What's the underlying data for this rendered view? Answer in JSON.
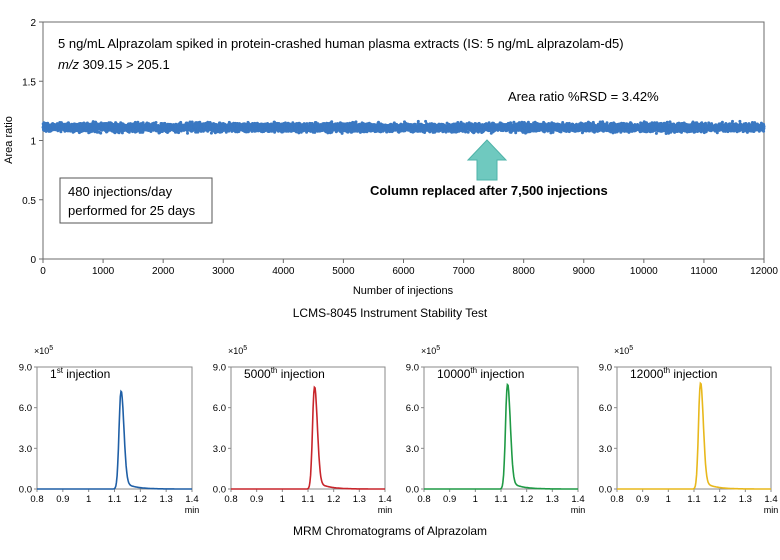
{
  "top_chart": {
    "caption": "LCMS-8045 Instrument Stability Test",
    "annotation_line1": "5 ng/mL Alprazolam spiked in protein-crashed human plasma extracts (IS: 5 ng/mL alprazolam-d5)",
    "annotation_line2_italic": "m/z",
    "annotation_line2_rest": " 309.15 > 205.1",
    "rsd_label": "Area ratio %RSD = 3.42%",
    "column_note": "Column replaced after 7,500 injections",
    "box_line1": "480 injections/day",
    "box_line2": "performed for 25 days",
    "arrow_color": "#6fc9bf",
    "point_color": "#3a78c2"
  },
  "bottom_caption": "MRM Chromatograms of Alprazolam",
  "chart_data": [
    {
      "type": "scatter",
      "title": "",
      "xlabel": "Number of injections",
      "ylabel": "Area ratio",
      "xlim": [
        0,
        12000
      ],
      "ylim": [
        0,
        2
      ],
      "x_ticks": [
        0,
        1000,
        2000,
        3000,
        4000,
        5000,
        6000,
        7000,
        8000,
        9000,
        10000,
        11000,
        12000
      ],
      "y_ticks": [
        "0",
        "0.5",
        "1",
        "1.5",
        "2"
      ],
      "y_tick_values": [
        0,
        0.5,
        1,
        1.5,
        2
      ],
      "series": [
        {
          "name": "Area ratio",
          "x_start": 0,
          "x_end": 12000,
          "count": 12000,
          "mean": 1.11,
          "spread": 0.038
        }
      ],
      "annotations": [
        "Column replaced after 7,500 injections",
        "Area ratio %RSD = 3.42%"
      ]
    },
    {
      "type": "line",
      "label_number": "1",
      "label_sup": "st",
      "label_rest": " injection",
      "color": "#1f5fa6",
      "x_unit": "min",
      "y_multiplier_base": "×10",
      "y_multiplier_exp": "5",
      "xlim": [
        0.8,
        1.4
      ],
      "ylim": [
        0,
        9.0
      ],
      "x_ticks": [
        "0.8",
        "0.9",
        "1",
        "1.1",
        "1.2",
        "1.3",
        "1.4"
      ],
      "x_tick_values": [
        0.8,
        0.9,
        1.0,
        1.1,
        1.2,
        1.3,
        1.4
      ],
      "y_ticks": [
        "0.0",
        "3.0",
        "6.0",
        "9.0"
      ],
      "y_tick_values": [
        0,
        3,
        6,
        9
      ],
      "peak_rt": 1.125,
      "peak_height": 7.2
    },
    {
      "type": "line",
      "label_number": "5000",
      "label_sup": "th",
      "label_rest": " injection",
      "color": "#c8252b",
      "x_unit": "min",
      "y_multiplier_base": "×10",
      "y_multiplier_exp": "5",
      "xlim": [
        0.8,
        1.4
      ],
      "ylim": [
        0,
        9.0
      ],
      "x_ticks": [
        "0.8",
        "0.9",
        "1",
        "1.1",
        "1.2",
        "1.3",
        "1.4"
      ],
      "x_tick_values": [
        0.8,
        0.9,
        1.0,
        1.1,
        1.2,
        1.3,
        1.4
      ],
      "y_ticks": [
        "0.0",
        "3.0",
        "6.0",
        "9.0"
      ],
      "y_tick_values": [
        0,
        3,
        6,
        9
      ],
      "peak_rt": 1.125,
      "peak_height": 7.5
    },
    {
      "type": "line",
      "label_number": "10000",
      "label_sup": "th",
      "label_rest": " injection",
      "color": "#1f9a45",
      "x_unit": "min",
      "y_multiplier_base": "×10",
      "y_multiplier_exp": "5",
      "xlim": [
        0.8,
        1.4
      ],
      "ylim": [
        0,
        9.0
      ],
      "x_ticks": [
        "0.8",
        "0.9",
        "1",
        "1.1",
        "1.2",
        "1.3",
        "1.4"
      ],
      "x_tick_values": [
        0.8,
        0.9,
        1.0,
        1.1,
        1.2,
        1.3,
        1.4
      ],
      "y_ticks": [
        "0.0",
        "3.0",
        "6.0",
        "9.0"
      ],
      "y_tick_values": [
        0,
        3,
        6,
        9
      ],
      "peak_rt": 1.125,
      "peak_height": 7.7
    },
    {
      "type": "line",
      "label_number": "12000",
      "label_sup": "th",
      "label_rest": " injection",
      "color": "#e8b81c",
      "x_unit": "min",
      "y_multiplier_base": "×10",
      "y_multiplier_exp": "5",
      "xlim": [
        0.8,
        1.4
      ],
      "ylim": [
        0,
        9.0
      ],
      "x_ticks": [
        "0.8",
        "0.9",
        "1",
        "1.1",
        "1.2",
        "1.3",
        "1.4"
      ],
      "x_tick_values": [
        0.8,
        0.9,
        1.0,
        1.1,
        1.2,
        1.3,
        1.4
      ],
      "y_ticks": [
        "0.0",
        "3.0",
        "6.0",
        "9.0"
      ],
      "y_tick_values": [
        0,
        3,
        6,
        9
      ],
      "peak_rt": 1.125,
      "peak_height": 7.8
    }
  ]
}
